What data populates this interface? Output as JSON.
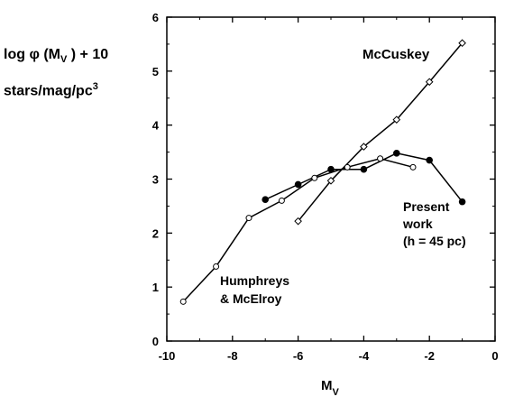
{
  "ylabel": {
    "line1": {
      "log": "log ",
      "phi": "φ (M",
      "sub": "V",
      "tail": " ) + 10"
    },
    "line2": {
      "main": "stars/mag/pc",
      "sup": "3"
    }
  },
  "xlabel": {
    "main": "M",
    "sub": "V"
  },
  "annotations": {
    "mccuskey": "McCuskey",
    "present": [
      "Present",
      "work",
      "(h = 45 pc)"
    ],
    "humphreys": [
      "Humphreys",
      "& McElroy"
    ]
  },
  "chart_data": {
    "type": "line",
    "title": "",
    "xlabel": "M_V",
    "ylabel": "log φ (M_V) + 10  stars/mag/pc^3",
    "xlim": [
      -10,
      0
    ],
    "ylim": [
      0,
      6
    ],
    "xticks": [
      -10,
      -8,
      -6,
      -4,
      -2,
      0
    ],
    "yticks": [
      0,
      1,
      2,
      3,
      4,
      5,
      6
    ],
    "grid": false,
    "series": [
      {
        "name": "Humphreys & McElroy",
        "marker": "open-circle",
        "x": [
          -9.5,
          -8.5,
          -7.5,
          -6.5,
          -5.5,
          -4.5,
          -3.5,
          -2.5
        ],
        "y": [
          0.73,
          1.38,
          2.28,
          2.6,
          3.02,
          3.22,
          3.38,
          3.22
        ]
      },
      {
        "name": "McCuskey",
        "marker": "open-diamond",
        "x": [
          -6,
          -5,
          -4,
          -3,
          -2,
          -1
        ],
        "y": [
          2.22,
          2.97,
          3.6,
          4.1,
          4.8,
          5.52
        ]
      },
      {
        "name": "Present work (h = 45 pc)",
        "marker": "filled-circle",
        "x": [
          -7,
          -6,
          -5,
          -4,
          -3,
          -2,
          -1
        ],
        "y": [
          2.62,
          2.9,
          3.18,
          3.18,
          3.48,
          3.35,
          2.58
        ]
      }
    ]
  }
}
